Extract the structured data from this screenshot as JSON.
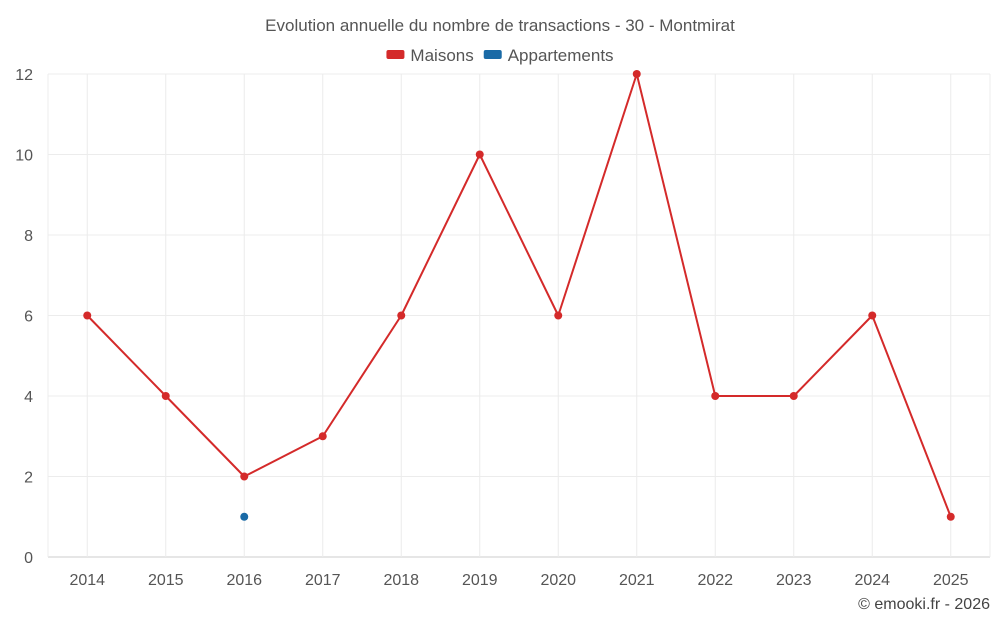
{
  "chart_data": {
    "type": "line",
    "title": "Evolution annuelle du nombre de transactions - 30 - Montmirat",
    "categories": [
      "2014",
      "2015",
      "2016",
      "2017",
      "2018",
      "2019",
      "2020",
      "2021",
      "2022",
      "2023",
      "2024",
      "2025"
    ],
    "series": [
      {
        "name": "Maisons",
        "color": "#d42a2a",
        "values": [
          6,
          4,
          2,
          3,
          6,
          10,
          6,
          12,
          4,
          4,
          6,
          1
        ]
      },
      {
        "name": "Appartements",
        "color": "#1a6aa6",
        "values": [
          null,
          null,
          1,
          null,
          null,
          null,
          null,
          null,
          null,
          null,
          null,
          null
        ]
      }
    ],
    "yticks": [
      0,
      2,
      4,
      6,
      8,
      10,
      12
    ],
    "ylim": [
      0,
      12
    ],
    "xlabel": "",
    "ylabel": "",
    "grid": true,
    "legend_position": "top-center"
  },
  "credit": "© emooki.fr - 2026"
}
